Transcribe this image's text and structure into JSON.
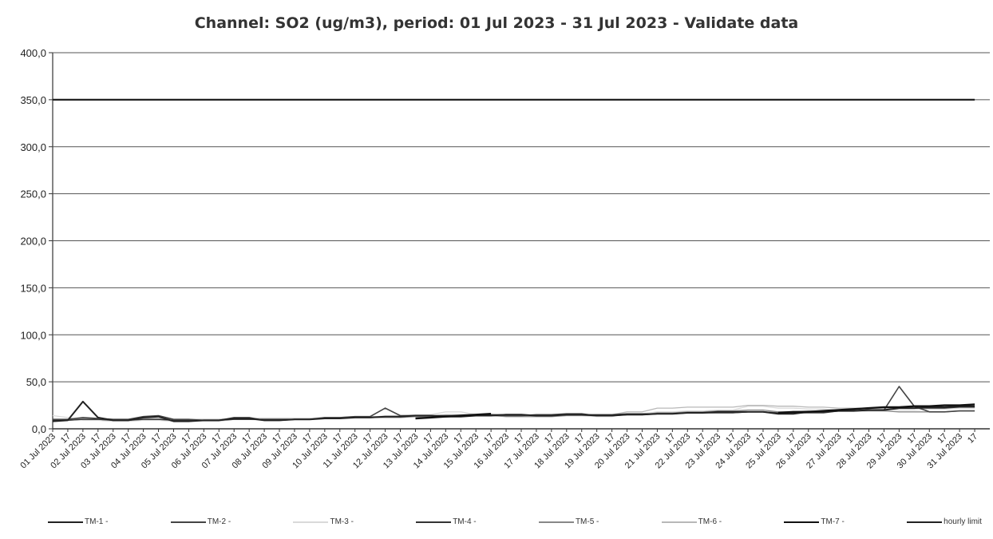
{
  "chart_data": {
    "type": "line",
    "title": "Channel: SO2 (ug/m3), period: 01 Jul 2023 - 31 Jul 2023 - Validate data",
    "xlabel": "",
    "ylabel": "",
    "ylim": [
      0,
      400
    ],
    "grid": true,
    "legend_position": "bottom",
    "y_ticks": [
      "0,0",
      "50,0",
      "100,0",
      "150,0",
      "200,0",
      "250,0",
      "300,0",
      "350,0",
      "400,0"
    ],
    "x_ticks": [
      "01 Jul 2023",
      "17",
      "02 Jul 2023",
      "17",
      "03 Jul 2023",
      "17",
      "04 Jul 2023",
      "17",
      "05 Jul 2023",
      "17",
      "06 Jul 2023",
      "17",
      "07 Jul 2023",
      "17",
      "08 Jul 2023",
      "17",
      "09 Jul 2023",
      "17",
      "10 Jul 2023",
      "17",
      "11 Jul 2023",
      "17",
      "12 Jul 2023",
      "17",
      "13 Jul 2023",
      "17",
      "14 Jul 2023",
      "17",
      "15 Jul 2023",
      "17",
      "16 Jul 2023",
      "17",
      "17 Jul 2023",
      "17",
      "18 Jul 2023",
      "17",
      "19 Jul 2023",
      "17",
      "20 Jul 2023",
      "17",
      "21 Jul 2023",
      "17",
      "22 Jul 2023",
      "17",
      "23 Jul 2023",
      "17",
      "24 Jul 2023",
      "17",
      "25 Jul 2023",
      "17",
      "26 Jul 2023",
      "17",
      "27 Jul 2023",
      "17",
      "28 Jul 2023",
      "17",
      "29 Jul 2023",
      "17",
      "30 Jul 2023",
      "17",
      "31 Jul 2023",
      "17"
    ],
    "x": [
      1,
      1.5,
      2,
      2.5,
      3,
      3.5,
      4,
      4.5,
      5,
      5.5,
      6,
      6.5,
      7,
      7.5,
      8,
      8.5,
      9,
      9.5,
      10,
      10.5,
      11,
      11.5,
      12,
      12.5,
      13,
      13.5,
      14,
      14.5,
      15,
      15.5,
      16,
      16.5,
      17,
      17.5,
      18,
      18.5,
      19,
      19.5,
      20,
      20.5,
      21,
      21.5,
      22,
      22.5,
      23,
      23.5,
      24,
      24.5,
      25,
      25.5,
      26,
      26.5,
      27,
      27.5,
      28,
      28.5,
      29,
      29.5,
      30,
      30.5,
      31,
      31.5
    ],
    "series": [
      {
        "name": "TM-1 -",
        "color": "#222222",
        "width": 2,
        "values": [
          8,
          9,
          29,
          12,
          9,
          9,
          12,
          13,
          8,
          8,
          9,
          9,
          11,
          11,
          9,
          9,
          10,
          10,
          11,
          11,
          12,
          12,
          13,
          13,
          14,
          14,
          13,
          13,
          14,
          14,
          15,
          15,
          14,
          14,
          15,
          15,
          14,
          14,
          15,
          15,
          16,
          16,
          17,
          17,
          18,
          18,
          18,
          18,
          16,
          16,
          18,
          18,
          19,
          19,
          20,
          20,
          22,
          22,
          23,
          23,
          24,
          24
        ]
      },
      {
        "name": "TM-2 -",
        "color": "#444444",
        "width": 1.6,
        "values": [
          10,
          10,
          12,
          11,
          10,
          10,
          13,
          14,
          10,
          10,
          9,
          9,
          12,
          12,
          9,
          9,
          10,
          10,
          12,
          12,
          13,
          13,
          22,
          14,
          14,
          14,
          13,
          13,
          15,
          15,
          14,
          14,
          15,
          15,
          16,
          16,
          14,
          14,
          15,
          15,
          16,
          16,
          17,
          17,
          17,
          17,
          18,
          18,
          17,
          17,
          17,
          17,
          19,
          19,
          20,
          20,
          45,
          24,
          18,
          18,
          19,
          19
        ]
      },
      {
        "name": "TM-3 -",
        "color": "#d9d9d9",
        "width": 1.3,
        "values": [
          14,
          12,
          9,
          9,
          8,
          8,
          9,
          9,
          8,
          8,
          8,
          8,
          10,
          10,
          9,
          9,
          10,
          10,
          11,
          11,
          12,
          12,
          14,
          14,
          15,
          15,
          18,
          18,
          15,
          15,
          14,
          14,
          13,
          13,
          14,
          14,
          13,
          13,
          16,
          16,
          18,
          18,
          19,
          19,
          20,
          20,
          24,
          24,
          22,
          22,
          21,
          21,
          20,
          20,
          21,
          21,
          20,
          20,
          21,
          21,
          22,
          22
        ]
      },
      {
        "name": "TM-4 -",
        "color": "#333333",
        "width": 1.3,
        "values": [
          9,
          9,
          10,
          10,
          9,
          9,
          10,
          10,
          9,
          9,
          9,
          9,
          10,
          10,
          10,
          10,
          10,
          10,
          11,
          11,
          12,
          12,
          13,
          13,
          14,
          14,
          14,
          14,
          15,
          15,
          15,
          15,
          14,
          14,
          15,
          15,
          15,
          15,
          16,
          16,
          16,
          16,
          17,
          17,
          17,
          17,
          18,
          18,
          16,
          16,
          18,
          18,
          19,
          19,
          20,
          20,
          22,
          22,
          22,
          22,
          23,
          23
        ]
      },
      {
        "name": "TM-5 -",
        "color": "#888888",
        "width": 1.3,
        "values": [
          9,
          9,
          10,
          10,
          9,
          9,
          10,
          10,
          9,
          9,
          9,
          9,
          10,
          10,
          10,
          10,
          10,
          10,
          11,
          11,
          12,
          12,
          12,
          12,
          13,
          13,
          14,
          14,
          14,
          14,
          13,
          13,
          13,
          13,
          14,
          14,
          14,
          14,
          15,
          15,
          17,
          17,
          18,
          18,
          19,
          19,
          20,
          20,
          18,
          18,
          19,
          19,
          19,
          19,
          19,
          19,
          18,
          18,
          18,
          18,
          19,
          19
        ]
      },
      {
        "name": "TM-6 -",
        "color": "#b8b8b8",
        "width": 1.3,
        "values": [
          10,
          10,
          11,
          11,
          10,
          10,
          11,
          11,
          10,
          10,
          10,
          10,
          11,
          11,
          11,
          11,
          11,
          11,
          12,
          12,
          13,
          13,
          13,
          13,
          14,
          14,
          15,
          15,
          15,
          15,
          14,
          14,
          14,
          14,
          15,
          15,
          15,
          15,
          18,
          18,
          22,
          22,
          23,
          23,
          23,
          23,
          25,
          25,
          24,
          24,
          23,
          23,
          22,
          22,
          22,
          22,
          22,
          22,
          22,
          22,
          23,
          23
        ]
      },
      {
        "name": "TM-7 -",
        "color": "#111111",
        "width": 2.4,
        "values": [
          null,
          null,
          null,
          null,
          null,
          null,
          null,
          null,
          null,
          null,
          null,
          null,
          null,
          null,
          null,
          null,
          null,
          null,
          null,
          null,
          null,
          null,
          null,
          null,
          11,
          12,
          13,
          14,
          15,
          16,
          null,
          null,
          null,
          null,
          null,
          null,
          null,
          null,
          null,
          null,
          null,
          null,
          null,
          null,
          null,
          null,
          null,
          null,
          17,
          18,
          18,
          19,
          20,
          21,
          22,
          23,
          23,
          24,
          24,
          25,
          25,
          26
        ]
      },
      {
        "name": "hourly limit",
        "color": "#222222",
        "width": 2.2,
        "values": [
          350,
          350,
          350,
          350,
          350,
          350,
          350,
          350,
          350,
          350,
          350,
          350,
          350,
          350,
          350,
          350,
          350,
          350,
          350,
          350,
          350,
          350,
          350,
          350,
          350,
          350,
          350,
          350,
          350,
          350,
          350,
          350,
          350,
          350,
          350,
          350,
          350,
          350,
          350,
          350,
          350,
          350,
          350,
          350,
          350,
          350,
          350,
          350,
          350,
          350,
          350,
          350,
          350,
          350,
          350,
          350,
          350,
          350,
          350,
          350,
          350,
          350
        ]
      }
    ]
  }
}
